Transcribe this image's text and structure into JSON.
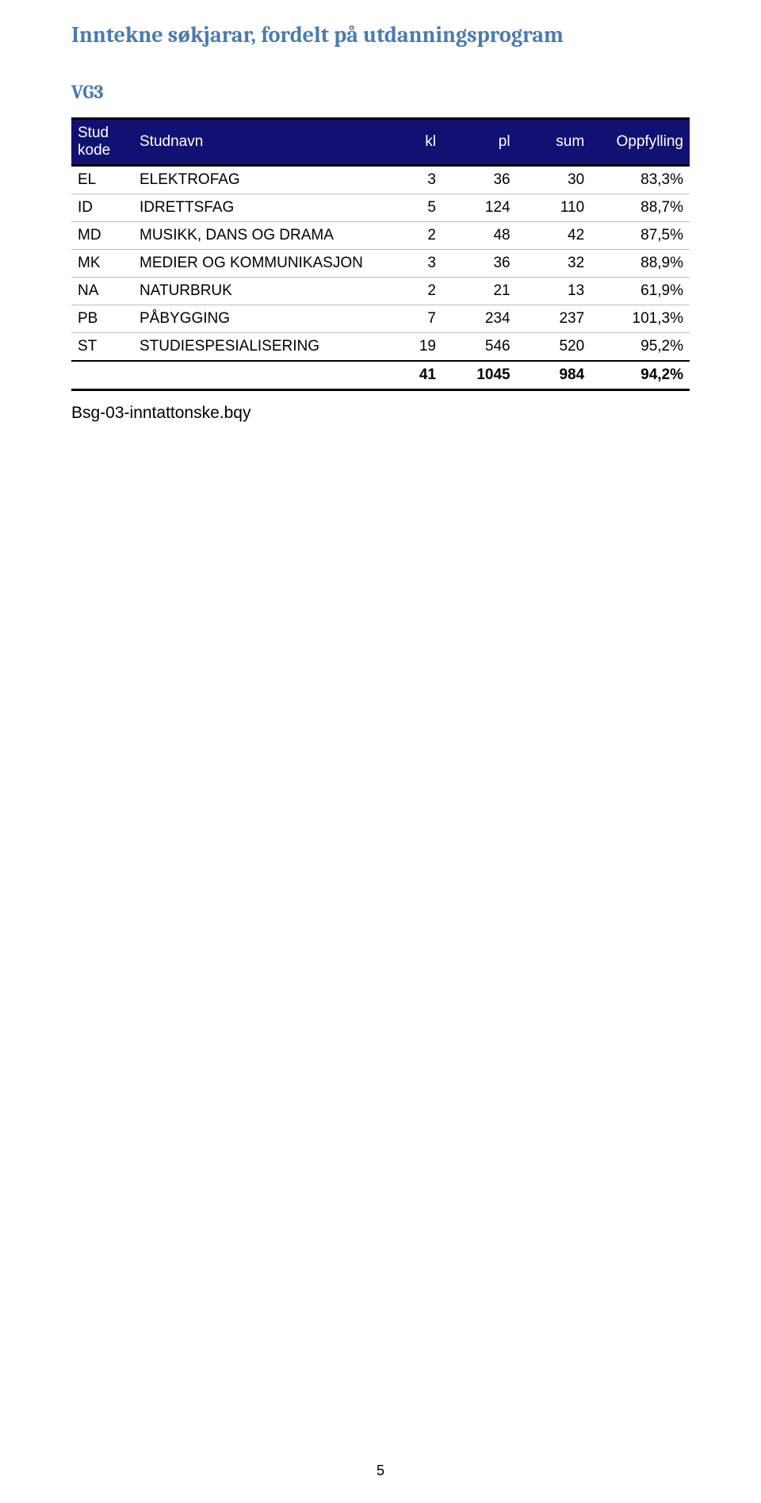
{
  "title": "Inntekne søkjarar, fordelt på utdanningsprogram",
  "subtitle": "VG3",
  "table": {
    "columns": {
      "code": "Stud kode",
      "name": "Studnavn",
      "kl": "kl",
      "pl": "pl",
      "sum": "sum",
      "opp": "Oppfylling"
    },
    "rows": [
      {
        "code": "EL",
        "name": "ELEKTROFAG",
        "kl": "3",
        "pl": "36",
        "sum": "30",
        "opp": "83,3%"
      },
      {
        "code": "ID",
        "name": "IDRETTSFAG",
        "kl": "5",
        "pl": "124",
        "sum": "110",
        "opp": "88,7%"
      },
      {
        "code": "MD",
        "name": "MUSIKK, DANS OG DRAMA",
        "kl": "2",
        "pl": "48",
        "sum": "42",
        "opp": "87,5%"
      },
      {
        "code": "MK",
        "name": "MEDIER OG KOMMUNIKASJON",
        "kl": "3",
        "pl": "36",
        "sum": "32",
        "opp": "88,9%"
      },
      {
        "code": "NA",
        "name": "NATURBRUK",
        "kl": "2",
        "pl": "21",
        "sum": "13",
        "opp": "61,9%"
      },
      {
        "code": "PB",
        "name": "PÅBYGGING",
        "kl": "7",
        "pl": "234",
        "sum": "237",
        "opp": "101,3%"
      },
      {
        "code": "ST",
        "name": "STUDIESPESIALISERING",
        "kl": "19",
        "pl": "546",
        "sum": "520",
        "opp": "95,2%"
      }
    ],
    "total": {
      "code": "",
      "name": "",
      "kl": "41",
      "pl": "1045",
      "sum": "984",
      "opp": "94,2%"
    }
  },
  "footer_text": "Bsg-03-inntattonske.bqy",
  "page_number": "5",
  "style": {
    "header_bg": "#111173",
    "header_fg": "#ffffff",
    "title_color": "#4a7bb0",
    "row_border": "#bfbfbf",
    "outer_border": "#000000",
    "body_font": "Arial",
    "title_font": "Cambria",
    "title_fontsize": 28,
    "subtitle_fontsize": 24,
    "cell_fontsize": 19
  }
}
